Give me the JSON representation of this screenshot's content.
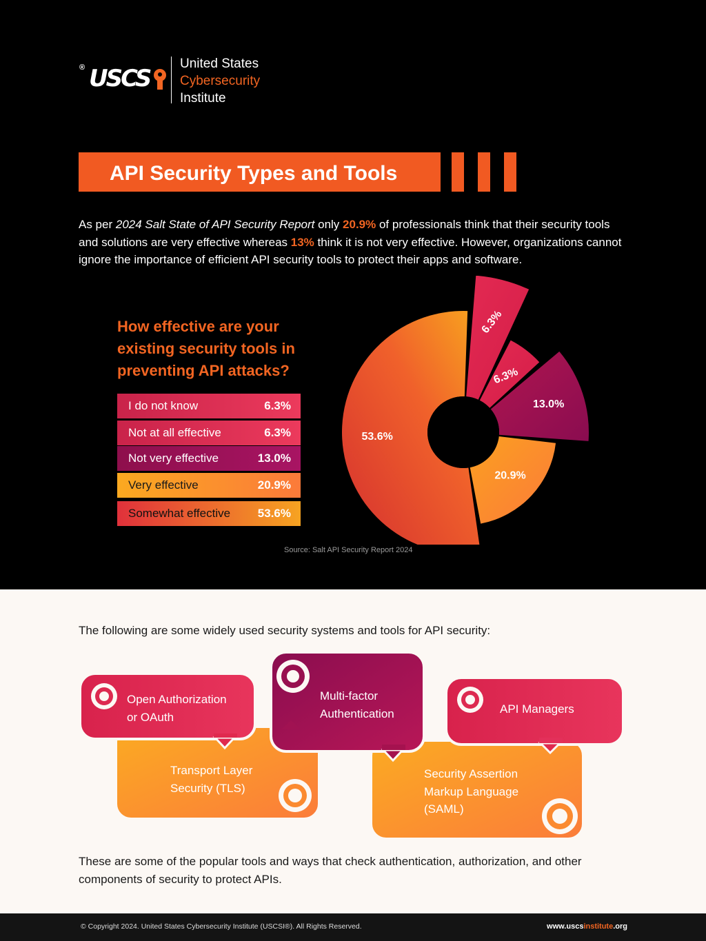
{
  "logo": {
    "mark": "USCS",
    "line1": "United States",
    "line2": "Cybersecurity",
    "line3": "Institute"
  },
  "title": "API Security Types and Tools",
  "intro": {
    "p1": "As per ",
    "report": "2024 Salt State of API Security Report",
    "p2": " only ",
    "stat1": "20.9%",
    "p3": " of professionals think that their security tools and solutions are very effective whereas ",
    "stat2": "13%",
    "p4": " think it is not very effective. However, organizations cannot ignore the importance of efficient API security tools to protect their apps and software."
  },
  "question": "How effective are your existing security tools in preventing API attacks?",
  "legend": [
    {
      "label": "I do not know",
      "value": "6.3%"
    },
    {
      "label": "Not at all effective",
      "value": "6.3%"
    },
    {
      "label": "Not very effective",
      "value": "13.0%"
    },
    {
      "label": "Very effective",
      "value": "20.9%"
    },
    {
      "label": "Somewhat effective",
      "value": "53.6%"
    }
  ],
  "chart_data": {
    "type": "pie",
    "categories": [
      "Somewhat effective",
      "I do not know",
      "Not at all effective",
      "Not very effective",
      "Very effective"
    ],
    "values": [
      53.6,
      6.3,
      6.3,
      13.0,
      20.9
    ],
    "labels": [
      "53.6%",
      "6.3%",
      "6.3%",
      "13.0%",
      "20.9%"
    ],
    "colors": [
      "#e8452f",
      "#e0294f",
      "#e0294f",
      "#9c1052",
      "#fb8f25"
    ],
    "title": ""
  },
  "source": "Source: Salt API Security Report 2024",
  "tools_intro": "The following are some widely used security systems and tools for API security:",
  "tools": {
    "oauth": [
      "Open Authorization",
      "or OAuth"
    ],
    "mfa": [
      "Multi-factor",
      "Authentication"
    ],
    "api_managers": [
      "API Managers"
    ],
    "tls": [
      "Transport Layer",
      "Security (TLS)"
    ],
    "saml": [
      "Security Assertion",
      "Markup Language",
      "(SAML)"
    ]
  },
  "outro": "These are some of the popular tools and ways that check authentication, authorization, and other components of security to protect APIs.",
  "footer": {
    "copyright": "© Copyright 2024. United States Cybersecurity Institute (USCSI®). All Rights Reserved.",
    "url_a": "www.uscs",
    "url_b": "institute",
    "url_c": ".org"
  }
}
